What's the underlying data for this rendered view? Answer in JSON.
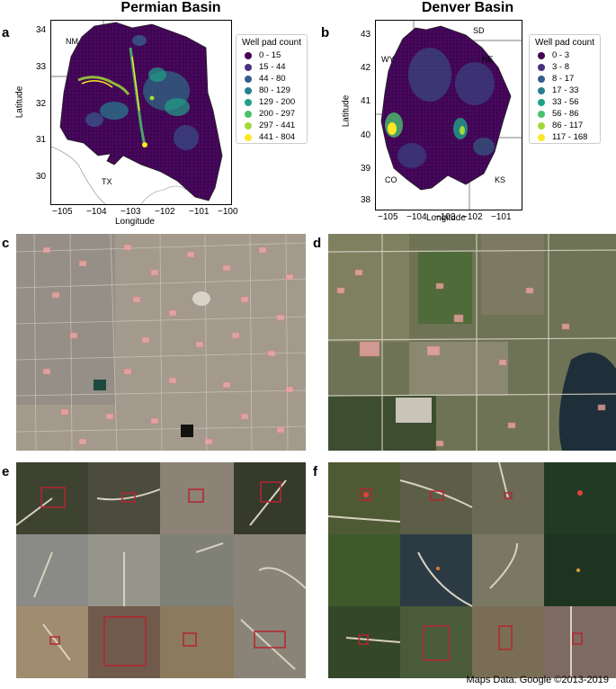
{
  "titles": {
    "left": "Permian Basin",
    "right": "Denver Basin"
  },
  "panels": {
    "a": "a",
    "b": "b",
    "c": "c",
    "d": "d",
    "e": "e",
    "f": "f"
  },
  "permian_map": {
    "ylabel": "Latitude",
    "xlabel": "Longitude",
    "y_ticks": [
      "34",
      "33",
      "32",
      "31",
      "30"
    ],
    "x_ticks": [
      "−105",
      "−104",
      "−103",
      "−102",
      "−101",
      "−100"
    ],
    "regions": [
      "NM",
      "TX"
    ],
    "legend_title": "Well pad count",
    "legend": [
      {
        "label": "0 - 15",
        "color": "#440154"
      },
      {
        "label": "15 - 44",
        "color": "#46327e"
      },
      {
        "label": "44 - 80",
        "color": "#365c8d"
      },
      {
        "label": "80 - 129",
        "color": "#277f8e"
      },
      {
        "label": "129 - 200",
        "color": "#1fa187"
      },
      {
        "label": "200 - 297",
        "color": "#4ac16d"
      },
      {
        "label": "297 - 441",
        "color": "#a0da39"
      },
      {
        "label": "441 - 804",
        "color": "#fde725"
      }
    ]
  },
  "denver_map": {
    "ylabel": "Latitude",
    "xlabel": "Longitude",
    "y_ticks": [
      "43",
      "42",
      "41",
      "40",
      "39",
      "38"
    ],
    "x_ticks": [
      "−105",
      "−104",
      "−103",
      "−102",
      "−101"
    ],
    "regions": [
      "SD",
      "WY",
      "NE",
      "CO",
      "KS"
    ],
    "legend_title": "Well pad count",
    "legend": [
      {
        "label": "0 - 3",
        "color": "#440154"
      },
      {
        "label": "3 - 8",
        "color": "#46327e"
      },
      {
        "label": "8 - 17",
        "color": "#365c8d"
      },
      {
        "label": "17 - 33",
        "color": "#277f8e"
      },
      {
        "label": "33 - 56",
        "color": "#1fa187"
      },
      {
        "label": "56 - 86",
        "color": "#4ac16d"
      },
      {
        "label": "86 - 117",
        "color": "#a0da39"
      },
      {
        "label": "117 - 168",
        "color": "#fde725"
      }
    ]
  },
  "credit": "Maps Data: Google ©2013-2019"
}
